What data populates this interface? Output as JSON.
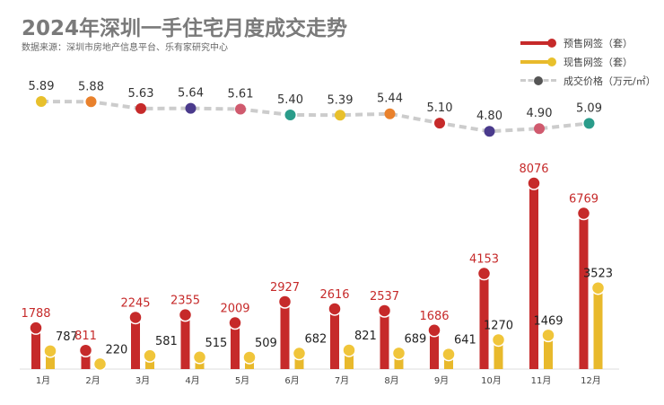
{
  "title": "2024年深圳一手住宅月度成交走势",
  "source": "数据来源：深圳市房地产信息平台、乐有家研究中心",
  "colors": {
    "presale": "#c62a2a",
    "current": "#e8b92c",
    "price_line": "#cccccc"
  },
  "chart_data": {
    "type": "bar+line",
    "categories": [
      "1月",
      "2月",
      "3月",
      "4月",
      "5月",
      "6月",
      "7月",
      "8月",
      "9月",
      "10月",
      "11月",
      "12月"
    ],
    "series": [
      {
        "name": "预售网签（套）",
        "type": "bar",
        "values": [
          1788,
          811,
          2245,
          2355,
          2009,
          2927,
          2616,
          2537,
          1686,
          4153,
          8076,
          6769
        ]
      },
      {
        "name": "现售网签（套）",
        "type": "bar",
        "values": [
          787,
          220,
          581,
          515,
          509,
          682,
          821,
          689,
          641,
          1270,
          1469,
          3523
        ]
      },
      {
        "name": "成交价格（万元/㎡）",
        "type": "line",
        "values": [
          5.89,
          5.88,
          5.63,
          5.64,
          5.61,
          5.4,
          5.39,
          5.44,
          5.1,
          4.8,
          4.9,
          5.09
        ],
        "marker_colors": [
          "#e8c02c",
          "#e9812c",
          "#c62a2a",
          "#4a3a8c",
          "#d05a6e",
          "#2a9c8a",
          "#e8c02c",
          "#e9812c",
          "#c62a2a",
          "#4a3a8c",
          "#d05a6e",
          "#2a9c8a"
        ]
      }
    ],
    "legend": "top-right",
    "grid": false
  }
}
